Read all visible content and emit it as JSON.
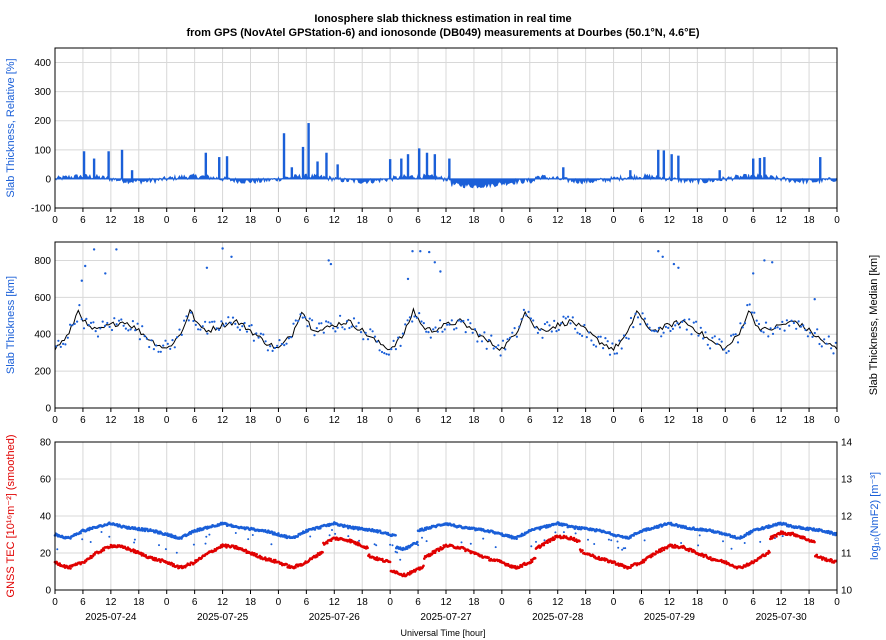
{
  "title": {
    "line1": "Ionosphere slab thickness estimation in real time",
    "line2": "from GPS (NovAtel GPStation-6) and ionosonde (DB049) measurements at Dourbes (50.1°N, 4.6°E)"
  },
  "colors": {
    "blue": "#1a5fd8",
    "red": "#e00000",
    "black": "#000000",
    "grid": "#d8d8d8"
  },
  "xlabel": "Universal Time [hour]",
  "hour_ticks": [
    "0",
    "6",
    "12",
    "18"
  ],
  "dates": [
    "2025-07-24",
    "2025-07-25",
    "2025-07-26",
    "2025-07-27",
    "2025-07-28",
    "2025-07-29",
    "2025-07-30"
  ],
  "chart_data": [
    {
      "type": "bar",
      "ylabel": "Slab Thickness, Relative [%]",
      "ylim": [
        -100,
        450
      ],
      "yticks": [
        "-100",
        "0",
        "100",
        "200",
        "300",
        "400"
      ],
      "x_range_days": [
        0,
        7
      ],
      "spikes": [
        {
          "day": 0.26,
          "value": 95
        },
        {
          "day": 0.35,
          "value": 70
        },
        {
          "day": 0.48,
          "value": 95
        },
        {
          "day": 0.6,
          "value": 100
        },
        {
          "day": 0.69,
          "value": 30
        },
        {
          "day": 1.35,
          "value": 90
        },
        {
          "day": 1.47,
          "value": 75
        },
        {
          "day": 1.54,
          "value": 78
        },
        {
          "day": 2.05,
          "value": 157
        },
        {
          "day": 2.12,
          "value": 40
        },
        {
          "day": 2.22,
          "value": 110
        },
        {
          "day": 2.27,
          "value": 192
        },
        {
          "day": 2.35,
          "value": 60
        },
        {
          "day": 2.43,
          "value": 90
        },
        {
          "day": 2.53,
          "value": 50
        },
        {
          "day": 3.0,
          "value": 68
        },
        {
          "day": 3.1,
          "value": 70
        },
        {
          "day": 3.16,
          "value": 85
        },
        {
          "day": 3.26,
          "value": 105
        },
        {
          "day": 3.33,
          "value": 90
        },
        {
          "day": 3.4,
          "value": 85
        },
        {
          "day": 3.53,
          "value": 70
        },
        {
          "day": 4.55,
          "value": 40
        },
        {
          "day": 5.15,
          "value": 30
        },
        {
          "day": 5.4,
          "value": 100
        },
        {
          "day": 5.45,
          "value": 98
        },
        {
          "day": 5.52,
          "value": 85
        },
        {
          "day": 5.58,
          "value": 80
        },
        {
          "day": 5.95,
          "value": 30
        },
        {
          "day": 6.25,
          "value": 70
        },
        {
          "day": 6.31,
          "value": 72
        },
        {
          "day": 6.35,
          "value": 75
        },
        {
          "day": 6.85,
          "value": 75
        }
      ]
    },
    {
      "type": "line",
      "ylabel": "Slab Thickness [km]",
      "ylabel_right": "Slab Thickness, Median [km]",
      "ylim": [
        0,
        900
      ],
      "yticks": [
        "0",
        "200",
        "400",
        "600",
        "800"
      ],
      "series": [
        {
          "style": "line",
          "color": "black",
          "daily_profile": [
            [
              0,
              320
            ],
            [
              3,
              400
            ],
            [
              5,
              530
            ],
            [
              7,
              440
            ],
            [
              9,
              420
            ],
            [
              12,
              450
            ],
            [
              15,
              470
            ],
            [
              18,
              420
            ],
            [
              21,
              360
            ],
            [
              24,
              320
            ]
          ]
        },
        {
          "style": "dots",
          "color": "blue"
        }
      ],
      "outliers": [
        {
          "day": 0.24,
          "value": 690
        },
        {
          "day": 0.27,
          "value": 770
        },
        {
          "day": 0.35,
          "value": 860
        },
        {
          "day": 0.45,
          "value": 730
        },
        {
          "day": 0.55,
          "value": 860
        },
        {
          "day": 1.36,
          "value": 760
        },
        {
          "day": 1.5,
          "value": 865
        },
        {
          "day": 1.58,
          "value": 820
        },
        {
          "day": 2.45,
          "value": 800
        },
        {
          "day": 2.47,
          "value": 780
        },
        {
          "day": 3.16,
          "value": 700
        },
        {
          "day": 3.2,
          "value": 850
        },
        {
          "day": 3.27,
          "value": 850
        },
        {
          "day": 3.35,
          "value": 845
        },
        {
          "day": 3.4,
          "value": 790
        },
        {
          "day": 3.45,
          "value": 740
        },
        {
          "day": 5.4,
          "value": 850
        },
        {
          "day": 5.44,
          "value": 820
        },
        {
          "day": 5.54,
          "value": 780
        },
        {
          "day": 5.58,
          "value": 760
        },
        {
          "day": 6.25,
          "value": 730
        },
        {
          "day": 6.35,
          "value": 800
        },
        {
          "day": 6.42,
          "value": 790
        },
        {
          "day": 6.8,
          "value": 590
        }
      ]
    },
    {
      "type": "scatter",
      "ylabel": "GNSS TEC [10¹⁶m⁻²] (smoothed)",
      "ylabel_right": "log₁₀(NmF2) [m⁻³]",
      "ylim": [
        0,
        80
      ],
      "yticks": [
        "0",
        "20",
        "40",
        "60",
        "80"
      ],
      "ylim_right": [
        10,
        14
      ],
      "yticks_right": [
        "10",
        "11",
        "12",
        "13",
        "14"
      ],
      "series": [
        {
          "name": "GNSS TEC",
          "color": "red",
          "daily_profile": [
            [
              0,
              15
            ],
            [
              3,
              12
            ],
            [
              6,
              15
            ],
            [
              9,
              20
            ],
            [
              12,
              24
            ],
            [
              15,
              23
            ],
            [
              18,
              20
            ],
            [
              21,
              17
            ],
            [
              24,
              15
            ]
          ]
        },
        {
          "name": "log10(NmF2)",
          "color": "blue",
          "daily_profile": [
            [
              0,
              11.5
            ],
            [
              3,
              11.4
            ],
            [
              6,
              11.6
            ],
            [
              9,
              11.7
            ],
            [
              12,
              11.8
            ],
            [
              15,
              11.7
            ],
            [
              18,
              11.65
            ],
            [
              21,
              11.6
            ],
            [
              24,
              11.5
            ]
          ]
        }
      ]
    }
  ]
}
